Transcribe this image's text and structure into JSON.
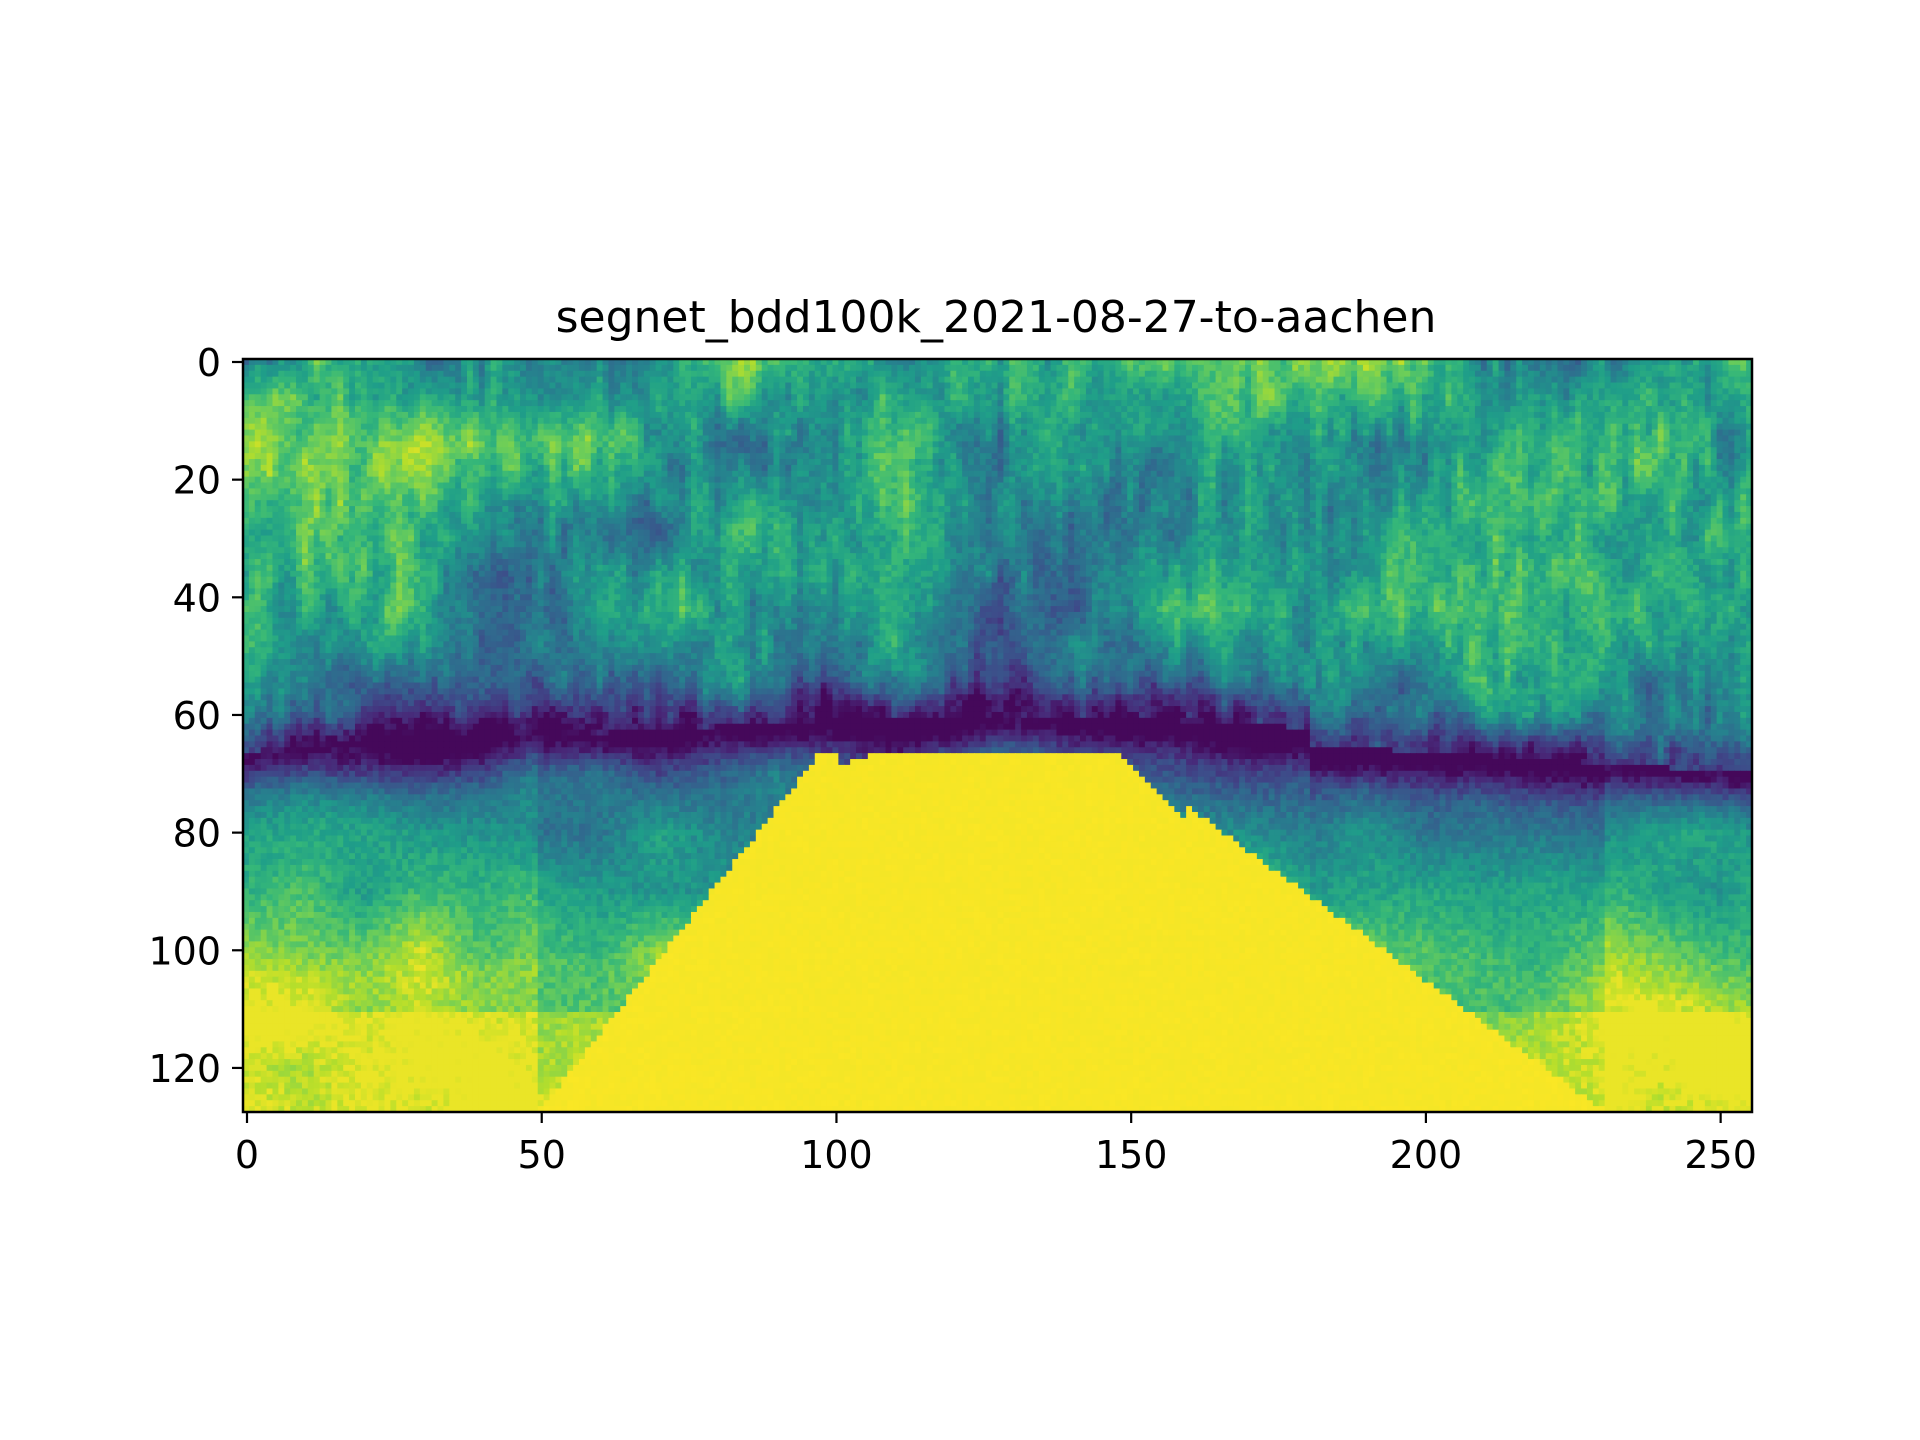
{
  "chart_data": {
    "type": "heatmap",
    "title": "segnet_bdd100k_2021-08-27-to-aachen",
    "xlabel": "",
    "ylabel": "",
    "xlim": [
      0,
      256
    ],
    "ylim": [
      128,
      0
    ],
    "x_ticks": [
      0,
      50,
      100,
      150,
      200,
      250
    ],
    "y_ticks": [
      0,
      20,
      40,
      60,
      80,
      100,
      120
    ],
    "image_width": 256,
    "image_height": 128,
    "colormap": "viridis",
    "grid": false,
    "colors": {
      "low": "#440154",
      "mid": "#21918c",
      "high": "#fde725"
    }
  }
}
